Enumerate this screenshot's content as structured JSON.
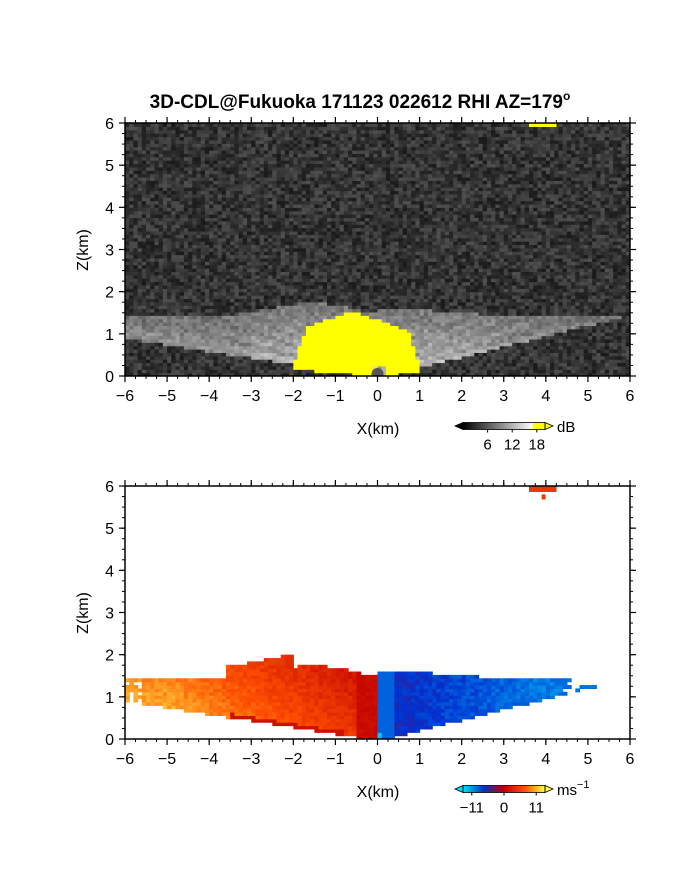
{
  "title": "3D-CDL@Fukuoka 171123 022612 RHI AZ=179",
  "title_sup": "o",
  "chart_data": [
    {
      "type": "heatmap",
      "name": "backscatter",
      "xlabel": "X(km)",
      "ylabel": "Z(km)",
      "xlim": [
        -6,
        6
      ],
      "ylim": [
        0,
        6
      ],
      "xticks": [
        "-6",
        "-5",
        "-4",
        "-3",
        "-2",
        "-1",
        "0",
        "1",
        "2",
        "3",
        "4",
        "5",
        "6"
      ],
      "yticks": [
        "0",
        "1",
        "2",
        "3",
        "4",
        "5",
        "6"
      ],
      "colorbar": {
        "unit": "dB",
        "ticks": [
          "6",
          "12",
          "18"
        ],
        "tick_values": [
          6,
          12,
          18
        ],
        "range": [
          0,
          20
        ],
        "colors": [
          "#000000",
          "#ffffff",
          "#ffff00"
        ]
      },
      "background": "noise-gray",
      "saturated_color": "#ffff00",
      "features": [
        {
          "kind": "saturated-core",
          "x": [
            -3.0,
            1.7
          ],
          "z": [
            0.0,
            1.8
          ]
        },
        {
          "kind": "aerosol-layer",
          "x": [
            -6.0,
            6.0
          ],
          "z": [
            0.0,
            1.5
          ]
        },
        {
          "kind": "cloud-echo",
          "x": [
            3.6,
            4.2
          ],
          "z": [
            5.8,
            6.0
          ]
        }
      ]
    },
    {
      "type": "heatmap",
      "name": "doppler-velocity",
      "xlabel": "X(km)",
      "ylabel": "Z(km)",
      "xlim": [
        -6,
        6
      ],
      "ylim": [
        0,
        6
      ],
      "xticks": [
        "-6",
        "-5",
        "-4",
        "-3",
        "-2",
        "-1",
        "0",
        "1",
        "2",
        "3",
        "4",
        "5",
        "6"
      ],
      "yticks": [
        "0",
        "1",
        "2",
        "3",
        "4",
        "5",
        "6"
      ],
      "colorbar": {
        "unit": "ms",
        "unit_sup": "−1",
        "ticks": [
          "−11",
          "0",
          "11"
        ],
        "tick_values": [
          -11,
          0,
          11
        ],
        "range": [
          -14,
          14
        ],
        "colors": [
          "#00e0ff",
          "#0030d0",
          "#c00000",
          "#ff5000",
          "#ffff50"
        ]
      },
      "features": [
        {
          "kind": "positive-velocity",
          "x": [
            -6.0,
            0.0
          ],
          "z": [
            0.0,
            1.8
          ],
          "velocity": 8
        },
        {
          "kind": "negative-velocity",
          "x": [
            0.0,
            6.0
          ],
          "z": [
            0.0,
            1.6
          ],
          "velocity": -7
        },
        {
          "kind": "cloud-velocity",
          "x": [
            3.6,
            4.2
          ],
          "z": [
            5.6,
            6.0
          ],
          "velocity": 5
        }
      ]
    }
  ]
}
